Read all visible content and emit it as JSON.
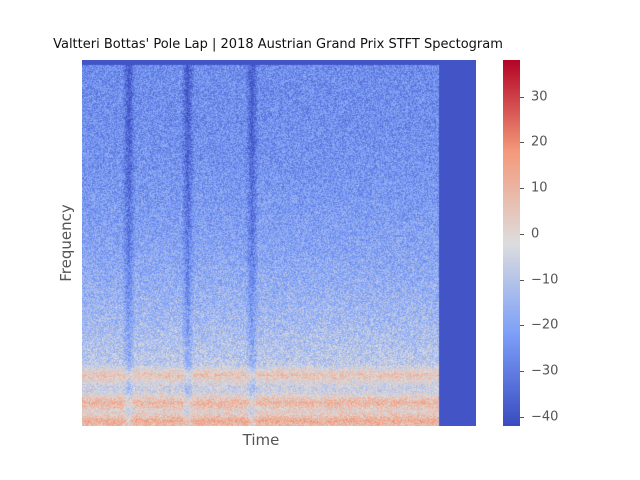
{
  "chart_data": {
    "type": "heatmap",
    "title": "Valtteri Bottas' Pole Lap | 2018 Austrian Grand Prix STFT Spectogram",
    "xlabel": "Time",
    "ylabel": "Frequency",
    "colormap": "coolwarm",
    "colorbar": {
      "range": [
        -42,
        38
      ],
      "ticks": [
        30,
        20,
        10,
        0,
        -10,
        -20,
        -30,
        -40
      ],
      "tick_labels": [
        "30",
        "20",
        "10",
        "0",
        "−10",
        "−20",
        "−30",
        "−40"
      ]
    },
    "colors": {
      "low": "#3b4cc0",
      "mid": "#dddddd",
      "high": "#b40426"
    }
  }
}
